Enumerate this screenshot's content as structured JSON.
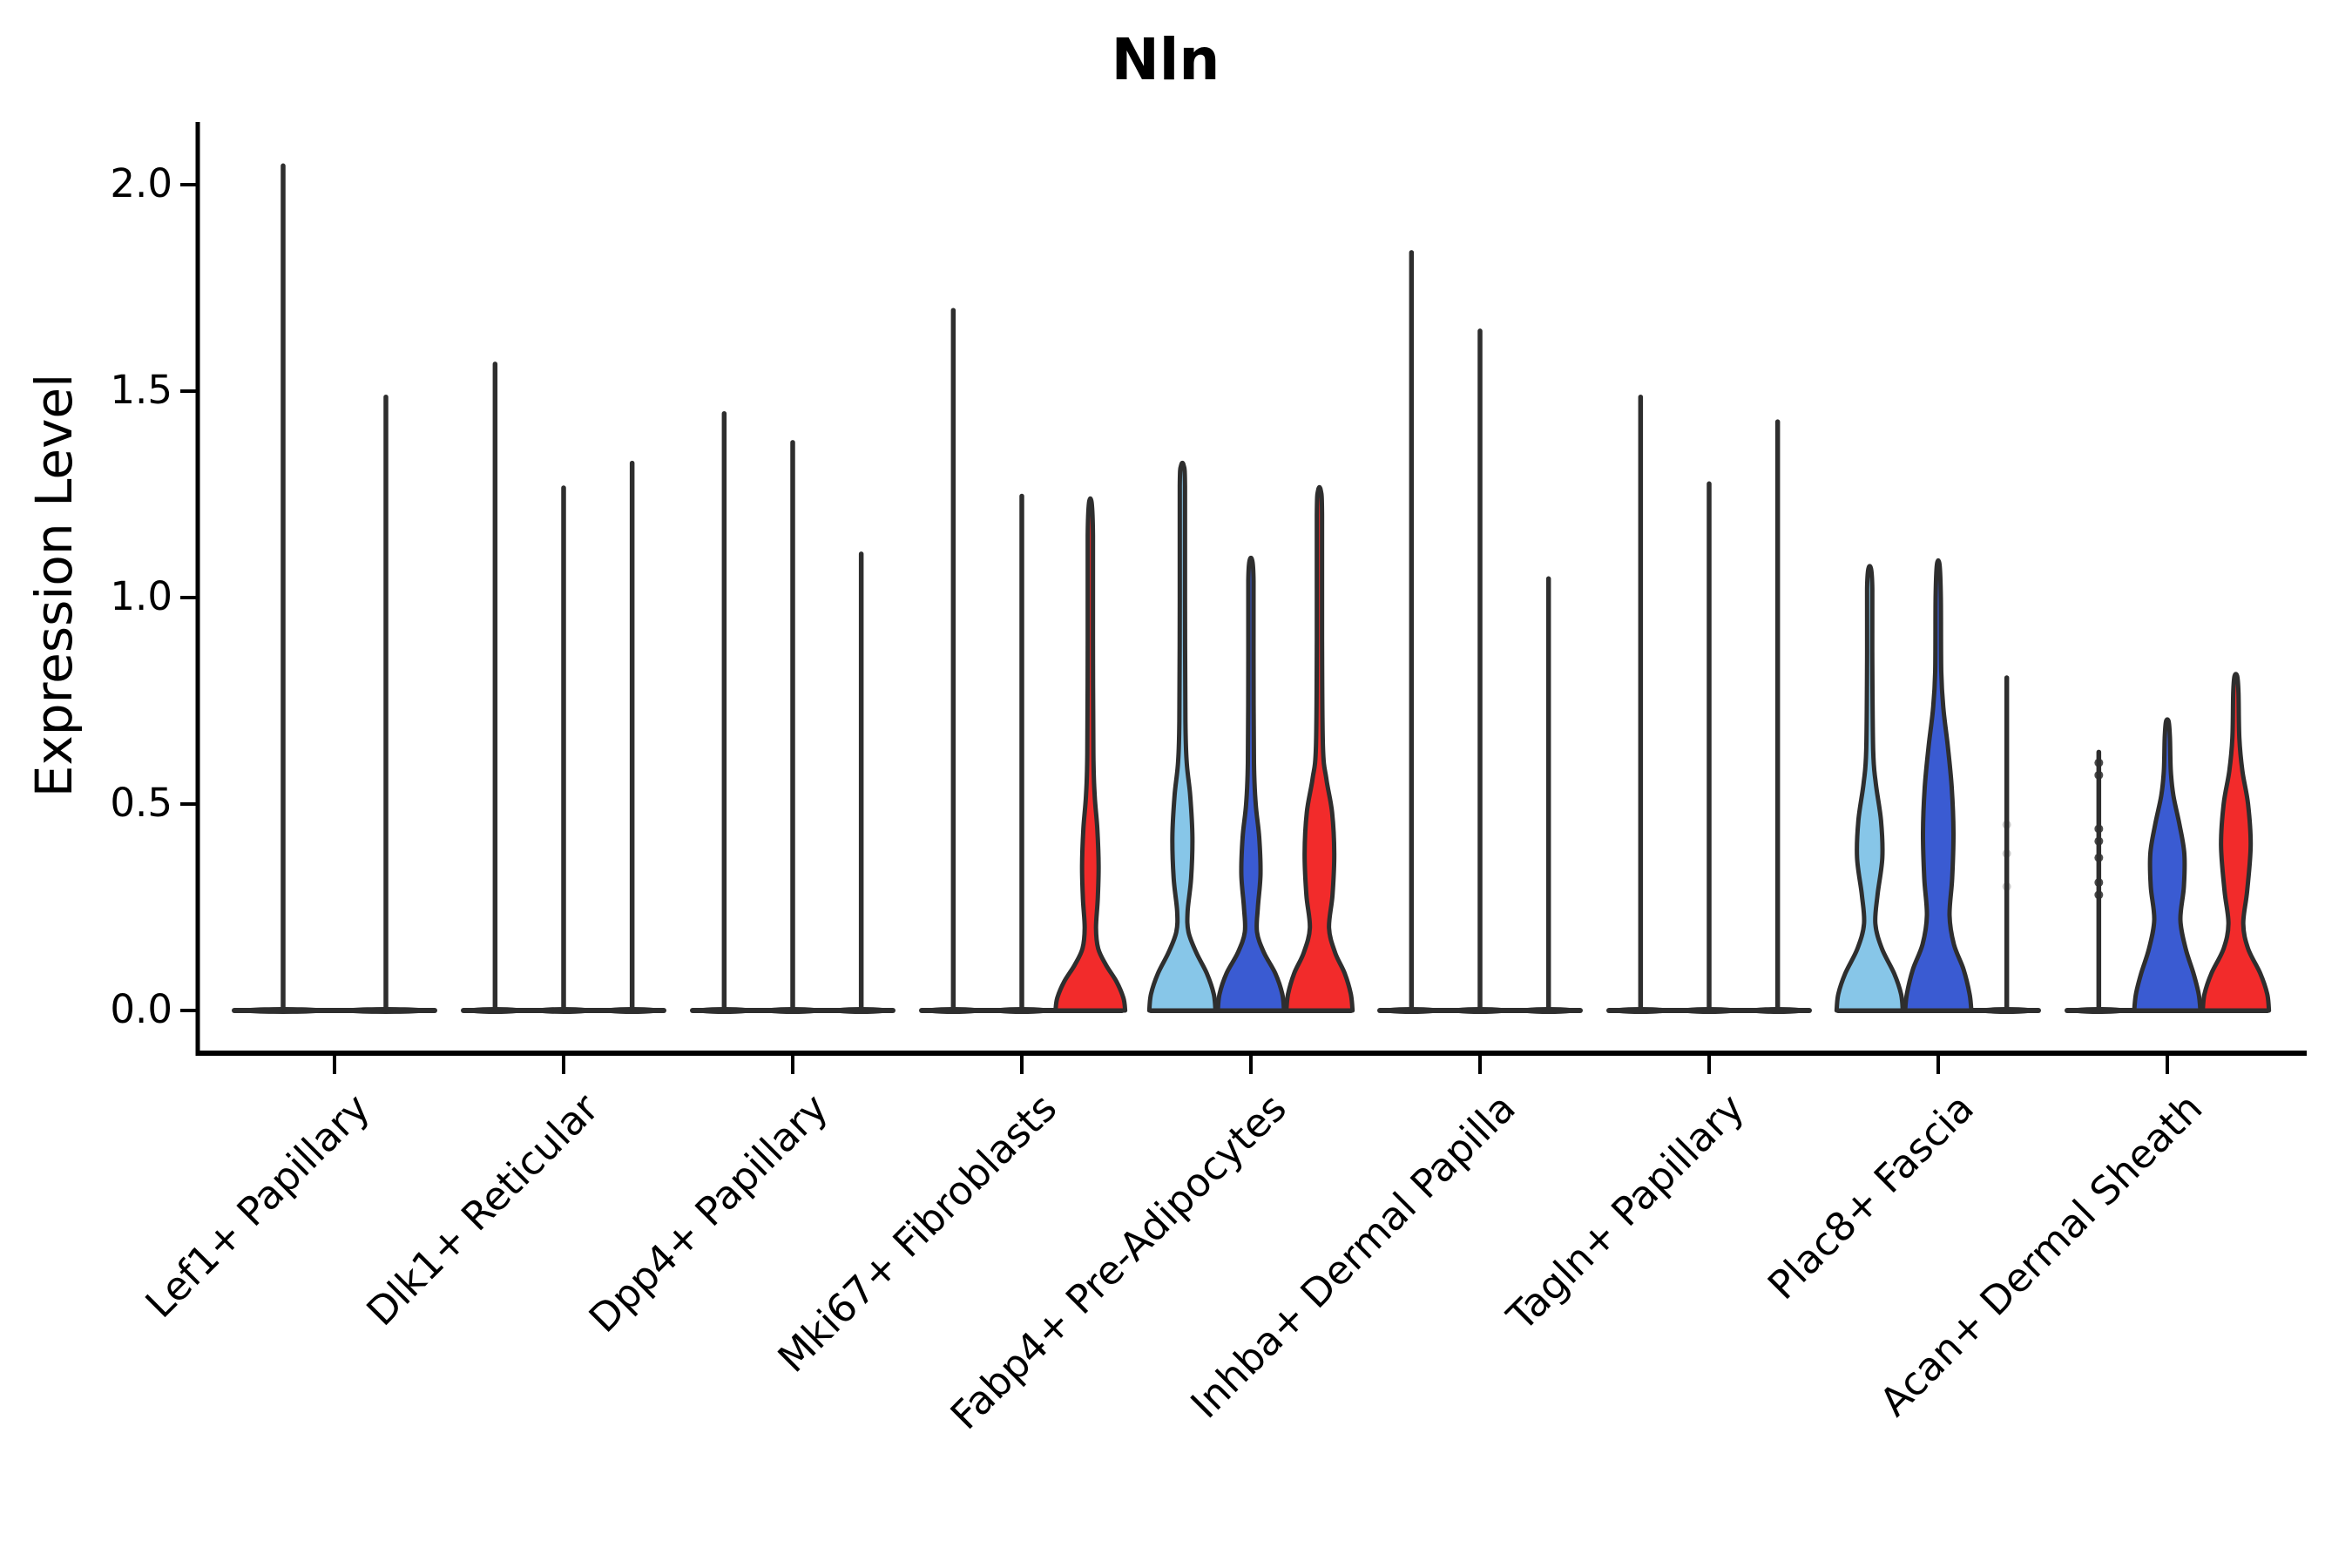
{
  "title": "Nln",
  "y_axis": {
    "label": "Expression Level",
    "ticks": [
      2.0,
      1.5,
      1.0,
      0.5,
      0.0
    ]
  },
  "colors": {
    "lightblue": "#87C6E8",
    "blue": "#3A5BD2",
    "red": "#F22B2B",
    "outline": "#2E2E2E",
    "axis": "#000000"
  },
  "chart_data": {
    "type": "violin",
    "title": "Nln",
    "ylabel": "Expression Level",
    "yticks": [
      0.0,
      0.5,
      1.0,
      1.5,
      2.0
    ],
    "ylim": [
      -0.1,
      2.15
    ],
    "grid": false,
    "legend": "none",
    "categories": [
      "Lef1+ Papillary",
      "Dlk1+ Reticular",
      "Dpp4+ Papillary",
      "Mki67+ Fibroblasts",
      "Fabp4+ Pre-Adipocytes",
      "Inhba+ Dermal Papilla",
      "Tagln+ Papillary",
      "Plac8+ Fascia",
      "Acan+ Dermal Sheath"
    ],
    "groups": [
      {
        "category": "Lef1+ Papillary",
        "violins": [
          {
            "kind": "spike",
            "fill": null,
            "max": 2.05
          },
          {
            "kind": "spike",
            "fill": null,
            "max": 1.49
          }
        ]
      },
      {
        "category": "Dlk1+ Reticular",
        "violins": [
          {
            "kind": "spike",
            "fill": null,
            "max": 1.57
          },
          {
            "kind": "spike",
            "fill": null,
            "max": 1.27
          },
          {
            "kind": "spike",
            "fill": null,
            "max": 1.33
          }
        ]
      },
      {
        "category": "Dpp4+ Papillary",
        "violins": [
          {
            "kind": "spike",
            "fill": null,
            "max": 1.45
          },
          {
            "kind": "spike",
            "fill": null,
            "max": 1.38
          },
          {
            "kind": "spike",
            "fill": null,
            "max": 1.11
          }
        ]
      },
      {
        "category": "Mki67+ Fibroblasts",
        "violins": [
          {
            "kind": "spike",
            "fill": null,
            "max": 1.7
          },
          {
            "kind": "spike",
            "fill": null,
            "max": 1.25
          },
          {
            "kind": "violin",
            "fill": "red",
            "max": 1.23,
            "profile": [
              [
                0,
                40
              ],
              [
                0.03,
                38
              ],
              [
                0.07,
                30
              ],
              [
                0.11,
                18
              ],
              [
                0.15,
                9
              ],
              [
                0.2,
                6.5
              ],
              [
                0.27,
                8.5
              ],
              [
                0.35,
                9.5
              ],
              [
                0.44,
                8
              ],
              [
                0.52,
                5
              ],
              [
                0.62,
                3.5
              ],
              [
                0.9,
                3
              ],
              [
                1.15,
                3
              ],
              [
                1.23,
                1.5
              ]
            ]
          }
        ]
      },
      {
        "category": "Fabp4+ Pre-Adipocytes",
        "violins": [
          {
            "kind": "violin",
            "fill": "lightblue",
            "max": 1.32,
            "profile": [
              [
                0,
                38
              ],
              [
                0.04,
                36
              ],
              [
                0.09,
                28
              ],
              [
                0.14,
                16
              ],
              [
                0.19,
                7
              ],
              [
                0.24,
                6
              ],
              [
                0.32,
                10
              ],
              [
                0.42,
                11.5
              ],
              [
                0.52,
                9
              ],
              [
                0.6,
                5
              ],
              [
                0.7,
                3.5
              ],
              [
                1.0,
                3
              ],
              [
                1.27,
                3
              ],
              [
                1.32,
                1.5
              ]
            ]
          },
          {
            "kind": "violin",
            "fill": "blue",
            "max": 1.09,
            "profile": [
              [
                0,
                38
              ],
              [
                0.04,
                36
              ],
              [
                0.09,
                28
              ],
              [
                0.14,
                15
              ],
              [
                0.19,
                7
              ],
              [
                0.25,
                8
              ],
              [
                0.33,
                11
              ],
              [
                0.42,
                9.5
              ],
              [
                0.5,
                5.5
              ],
              [
                0.6,
                3.5
              ],
              [
                0.85,
                3
              ],
              [
                1.04,
                3
              ],
              [
                1.09,
                1.5
              ]
            ]
          },
          {
            "kind": "violin",
            "fill": "red",
            "max": 1.26,
            "profile": [
              [
                0,
                38
              ],
              [
                0.04,
                36
              ],
              [
                0.09,
                29
              ],
              [
                0.14,
                18
              ],
              [
                0.2,
                11
              ],
              [
                0.28,
                15
              ],
              [
                0.38,
                17
              ],
              [
                0.48,
                14.5
              ],
              [
                0.56,
                8
              ],
              [
                0.64,
                4
              ],
              [
                0.9,
                3
              ],
              [
                1.2,
                3
              ],
              [
                1.26,
                1.5
              ]
            ]
          }
        ]
      },
      {
        "category": "Inhba+ Dermal Papilla",
        "violins": [
          {
            "kind": "spike",
            "fill": null,
            "max": 1.84
          },
          {
            "kind": "spike",
            "fill": null,
            "max": 1.65
          },
          {
            "kind": "spike",
            "fill": null,
            "max": 1.05
          }
        ]
      },
      {
        "category": "Tagln+ Papillary",
        "violins": [
          {
            "kind": "spike",
            "fill": null,
            "max": 1.49
          },
          {
            "kind": "spike",
            "fill": null,
            "max": 1.28
          },
          {
            "kind": "spike",
            "fill": null,
            "max": 1.43
          }
        ]
      },
      {
        "category": "Plac8+ Fascia",
        "violins": [
          {
            "kind": "violin",
            "fill": "lightblue",
            "max": 1.07,
            "profile": [
              [
                0,
                38
              ],
              [
                0.04,
                36
              ],
              [
                0.09,
                28
              ],
              [
                0.15,
                14
              ],
              [
                0.21,
                6.5
              ],
              [
                0.28,
                9
              ],
              [
                0.37,
                14.5
              ],
              [
                0.46,
                13
              ],
              [
                0.55,
                7
              ],
              [
                0.63,
                4
              ],
              [
                0.85,
                3
              ],
              [
                1.02,
                3
              ],
              [
                1.07,
                1.5
              ]
            ]
          },
          {
            "kind": "violin",
            "fill": "blue",
            "max": 1.08,
            "profile": [
              [
                0,
                38
              ],
              [
                0.04,
                36
              ],
              [
                0.1,
                29
              ],
              [
                0.16,
                18
              ],
              [
                0.23,
                13
              ],
              [
                0.32,
                16
              ],
              [
                0.43,
                17.5
              ],
              [
                0.54,
                15.5
              ],
              [
                0.64,
                11
              ],
              [
                0.73,
                6
              ],
              [
                0.82,
                3.5
              ],
              [
                1.0,
                3
              ],
              [
                1.08,
                1.5
              ]
            ]
          },
          {
            "kind": "spike",
            "fill": null,
            "max": 0.81,
            "dots": [
              0.3,
              0.38,
              0.45
            ],
            "dots_opacity": 0.25
          }
        ]
      },
      {
        "category": "Acan+ Dermal Sheath",
        "violins": [
          {
            "kind": "spike",
            "fill": null,
            "max": 0.63,
            "dots": [
              0.28,
              0.31,
              0.37,
              0.41,
              0.44,
              0.57,
              0.6
            ],
            "dots_opacity": 0.85
          },
          {
            "kind": "violin",
            "fill": "blue",
            "max": 0.7,
            "profile": [
              [
                0,
                38
              ],
              [
                0.04,
                36
              ],
              [
                0.09,
                30
              ],
              [
                0.15,
                21
              ],
              [
                0.22,
                15
              ],
              [
                0.3,
                19
              ],
              [
                0.38,
                19.5
              ],
              [
                0.45,
                14
              ],
              [
                0.52,
                7
              ],
              [
                0.58,
                4
              ],
              [
                0.66,
                3
              ],
              [
                0.7,
                1.5
              ]
            ]
          },
          {
            "kind": "violin",
            "fill": "red",
            "max": 0.81,
            "profile": [
              [
                0,
                38
              ],
              [
                0.04,
                36
              ],
              [
                0.09,
                28
              ],
              [
                0.15,
                14
              ],
              [
                0.21,
                8.5
              ],
              [
                0.29,
                13
              ],
              [
                0.4,
                17
              ],
              [
                0.5,
                14
              ],
              [
                0.58,
                7.5
              ],
              [
                0.66,
                4
              ],
              [
                0.77,
                3
              ],
              [
                0.81,
                1.5
              ]
            ]
          }
        ]
      }
    ]
  }
}
